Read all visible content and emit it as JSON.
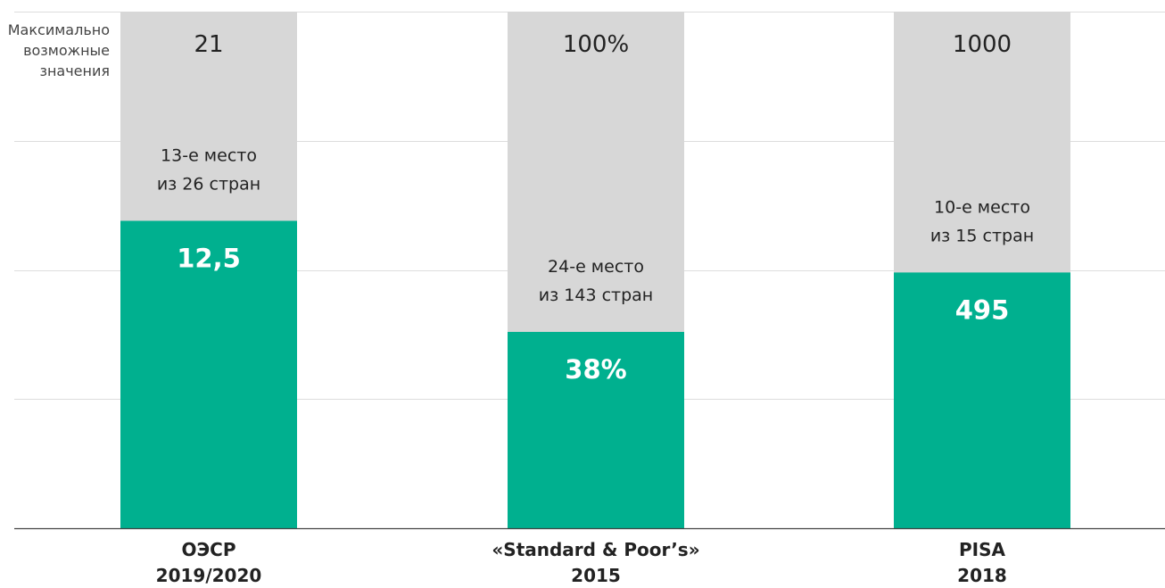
{
  "side_label": [
    "Максимально",
    "возможные",
    "значения"
  ],
  "colors": {
    "bar_value": "#00b08f",
    "bar_max": "#d7d7d7",
    "grid": "#dddddd",
    "axis": "#444444"
  },
  "chart_data": {
    "type": "bar",
    "stacked_overlay": true,
    "categories": [
      {
        "lines": [
          "ОЭСР",
          "2019/2020"
        ]
      },
      {
        "lines": [
          "«Standard & Poor’s»",
          "2015"
        ]
      },
      {
        "lines": [
          "PISA",
          "2018"
        ]
      }
    ],
    "values": [
      0.595,
      0.38,
      0.495
    ],
    "value_labels": [
      "12,5",
      "38%",
      "495"
    ],
    "max_labels": [
      "21",
      "100%",
      "1000"
    ],
    "rank_labels": [
      [
        "13-е место",
        "из 26 стран"
      ],
      [
        "24-е место",
        "из 143 стран"
      ],
      [
        "10-е место",
        "из 15 стран"
      ]
    ],
    "ylim": [
      0,
      1
    ],
    "grid": true,
    "gridlines": [
      0,
      0.25,
      0.5,
      0.75,
      1
    ]
  }
}
